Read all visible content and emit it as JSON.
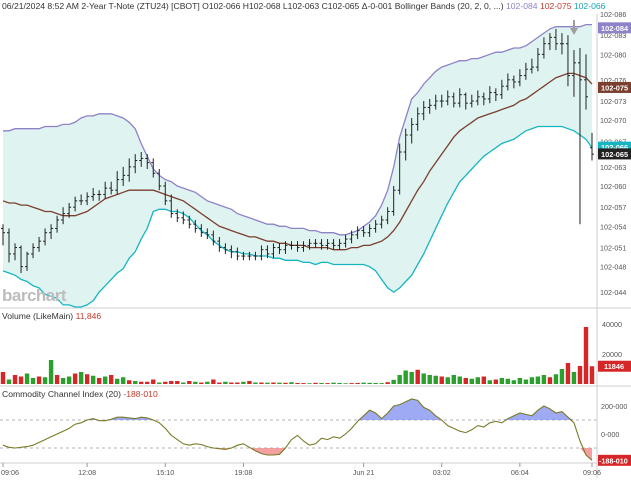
{
  "header": {
    "main": "06/21/2024 8:52 AM 2-Year T-Note (ZTU24) [CBOT] O102-066 H102-068 L102-063 C102-065 Δ-0-001 Bollinger Bands (20, 2, 0, ...)",
    "upper_val": "102-084",
    "mid_val": "102-075",
    "lower_val": "102-066"
  },
  "volume_panel": {
    "title": "Volume (LikeMain)",
    "value": "11,846"
  },
  "cci_panel": {
    "title": "Commodity Channel Index (20)",
    "value": "-188-010"
  },
  "logo": "barchart",
  "colors": {
    "upper_band": "#8e82c8",
    "middle_band": "#7b3f2e",
    "lower_band": "#17b5c2",
    "band_fill": "#dff3f1",
    "price_bar": "#222222",
    "vol_up": "#2ca02c",
    "vol_down": "#d62728",
    "cci_line": "#7a7a28",
    "cci_pos_fill": "#7f8df0",
    "cci_neg_fill": "#f08080",
    "tag_purple": "#8e82c8",
    "tag_brown": "#7b3f2e",
    "tag_teal": "#17b5c2",
    "tag_black": "#222222",
    "tag_red": "#d62728"
  },
  "chart_data": [
    {
      "type": "ohlc",
      "title": "2-Year T-Note (ZTU24) [CBOT]",
      "y_ticks": [
        "102-086",
        "102-083",
        "102-080",
        "102-076",
        "102-073",
        "102-070",
        "102-067",
        "102-063",
        "102-060",
        "102-057",
        "102-054",
        "102-051",
        "102-048",
        "102-044"
      ],
      "y_tick_values": [
        102.269,
        102.259,
        102.25,
        102.238,
        102.228,
        102.219,
        102.209,
        102.197,
        102.188,
        102.178,
        102.169,
        102.159,
        102.15,
        102.138
      ],
      "ylim": [
        102.131,
        102.269
      ],
      "price_tags": [
        {
          "label": "102-084",
          "value": 102.2625,
          "color": "#8e82c8"
        },
        {
          "label": "102-075",
          "value": 102.2344,
          "color": "#7b3f2e"
        },
        {
          "label": "102-066",
          "value": 102.2063,
          "color": "#17b5c2"
        },
        {
          "label": "102-065",
          "value": 102.2031,
          "color": "#222222"
        }
      ],
      "x_tick_labels": [
        "09:06",
        "12:08",
        "15:10",
        "19:08",
        "Jun 21",
        "03:02",
        "06:04",
        "09:06"
      ],
      "x_tick_index": [
        0,
        14,
        27,
        40,
        60,
        73,
        86,
        98
      ],
      "close": [
        102.166,
        102.156,
        102.159,
        102.15,
        102.156,
        102.159,
        102.162,
        102.166,
        102.168,
        102.172,
        102.175,
        102.178,
        102.181,
        102.181,
        102.183,
        102.184,
        102.184,
        102.187,
        102.186,
        102.191,
        102.193,
        102.197,
        102.2,
        102.201,
        102.199,
        102.194,
        102.188,
        102.181,
        102.175,
        102.173,
        102.172,
        102.17,
        102.168,
        102.166,
        102.165,
        102.162,
        102.159,
        102.158,
        102.157,
        102.155,
        102.155,
        102.155,
        102.155,
        102.158,
        102.156,
        102.159,
        102.158,
        102.16,
        102.16,
        102.159,
        102.16,
        102.161,
        102.161,
        102.16,
        102.161,
        102.16,
        102.161,
        102.163,
        102.165,
        102.167,
        102.166,
        102.168,
        102.17,
        102.172,
        102.176,
        102.186,
        102.204,
        102.212,
        102.217,
        102.222,
        102.225,
        102.226,
        102.228,
        102.228,
        102.23,
        102.227,
        102.231,
        102.227,
        102.228,
        102.23,
        102.229,
        102.232,
        102.231,
        102.235,
        102.238,
        102.237,
        102.24,
        102.243,
        102.244,
        102.25,
        102.255,
        102.258,
        102.255,
        102.255,
        102.24,
        102.246,
        102.238,
        102.23,
        102.203
      ],
      "open": [
        102.168,
        102.166,
        102.156,
        102.159,
        102.15,
        102.156,
        102.159,
        102.162,
        102.166,
        102.168,
        102.172,
        102.175,
        102.178,
        102.181,
        102.181,
        102.183,
        102.184,
        102.184,
        102.187,
        102.186,
        102.191,
        102.193,
        102.197,
        102.2,
        102.201,
        102.199,
        102.194,
        102.188,
        102.181,
        102.175,
        102.173,
        102.172,
        102.17,
        102.168,
        102.166,
        102.165,
        102.162,
        102.159,
        102.158,
        102.157,
        102.155,
        102.155,
        102.155,
        102.155,
        102.158,
        102.156,
        102.159,
        102.158,
        102.16,
        102.16,
        102.159,
        102.16,
        102.161,
        102.161,
        102.16,
        102.161,
        102.16,
        102.161,
        102.163,
        102.165,
        102.167,
        102.166,
        102.168,
        102.17,
        102.172,
        102.176,
        102.186,
        102.204,
        102.212,
        102.217,
        102.222,
        102.225,
        102.226,
        102.228,
        102.228,
        102.23,
        102.227,
        102.231,
        102.227,
        102.228,
        102.23,
        102.229,
        102.232,
        102.231,
        102.235,
        102.238,
        102.237,
        102.24,
        102.243,
        102.244,
        102.25,
        102.255,
        102.258,
        102.255,
        102.255,
        102.24,
        102.246,
        102.238,
        102.206
      ],
      "high": [
        102.17,
        102.168,
        102.161,
        102.16,
        102.157,
        102.161,
        102.164,
        102.168,
        102.17,
        102.174,
        102.178,
        102.18,
        102.183,
        102.184,
        102.185,
        102.187,
        102.186,
        102.19,
        102.19,
        102.195,
        102.197,
        102.201,
        102.203,
        102.204,
        102.203,
        102.201,
        102.196,
        102.19,
        102.184,
        102.177,
        102.176,
        102.174,
        102.172,
        102.17,
        102.168,
        102.167,
        102.164,
        102.161,
        102.16,
        102.159,
        102.157,
        102.157,
        102.157,
        102.16,
        102.16,
        102.161,
        102.161,
        102.162,
        102.162,
        102.162,
        102.162,
        102.163,
        102.163,
        102.163,
        102.163,
        102.163,
        102.163,
        102.165,
        102.167,
        102.169,
        102.169,
        102.17,
        102.172,
        102.174,
        102.178,
        102.188,
        102.208,
        102.215,
        102.22,
        102.225,
        102.228,
        102.229,
        102.231,
        102.231,
        102.233,
        102.232,
        102.234,
        102.232,
        102.231,
        102.233,
        102.232,
        102.235,
        102.234,
        102.238,
        102.241,
        102.24,
        102.243,
        102.246,
        102.248,
        102.253,
        102.258,
        102.26,
        102.262,
        102.26,
        102.259,
        102.252,
        102.253,
        102.25,
        102.213
      ],
      "low": [
        102.16,
        102.152,
        102.153,
        102.147,
        102.148,
        102.154,
        102.157,
        102.16,
        102.163,
        102.166,
        102.17,
        102.173,
        102.176,
        102.179,
        102.179,
        102.181,
        102.181,
        102.182,
        102.184,
        102.184,
        102.188,
        102.19,
        102.194,
        102.197,
        102.196,
        102.192,
        102.186,
        102.179,
        102.173,
        102.171,
        102.17,
        102.168,
        102.166,
        102.164,
        102.163,
        102.16,
        102.157,
        102.156,
        102.154,
        102.153,
        102.153,
        102.153,
        102.153,
        102.153,
        102.154,
        102.154,
        102.156,
        102.156,
        102.158,
        102.157,
        102.157,
        102.158,
        102.159,
        102.158,
        102.158,
        102.158,
        102.158,
        102.159,
        102.161,
        102.163,
        102.164,
        102.164,
        102.166,
        102.168,
        102.17,
        102.174,
        102.184,
        102.2,
        102.208,
        102.214,
        102.219,
        102.222,
        102.224,
        102.225,
        102.226,
        102.225,
        102.225,
        102.224,
        102.225,
        102.226,
        102.226,
        102.227,
        102.228,
        102.229,
        102.233,
        102.234,
        102.235,
        102.238,
        102.241,
        102.242,
        102.248,
        102.252,
        102.252,
        102.25,
        102.235,
        102.23,
        102.17,
        102.224,
        102.2
      ],
      "bb_upper": [
        102.214,
        102.214,
        102.215,
        102.215,
        102.215,
        102.215,
        102.215,
        102.216,
        102.216,
        102.216,
        102.217,
        102.217,
        102.218,
        102.22,
        102.221,
        102.221,
        102.222,
        102.222,
        102.222,
        102.221,
        102.22,
        102.218,
        102.215,
        102.208,
        102.202,
        102.196,
        102.193,
        102.191,
        102.19,
        102.188,
        102.187,
        102.186,
        102.185,
        102.183,
        102.181,
        102.18,
        102.179,
        102.178,
        102.177,
        102.175,
        102.174,
        102.173,
        102.172,
        102.171,
        102.17,
        102.17,
        102.169,
        102.169,
        102.168,
        102.168,
        102.168,
        102.167,
        102.167,
        102.166,
        102.166,
        102.166,
        102.165,
        102.165,
        102.166,
        102.167,
        102.169,
        102.171,
        102.174,
        102.179,
        102.186,
        102.197,
        102.211,
        102.22,
        102.229,
        102.232,
        102.236,
        102.239,
        102.242,
        102.244,
        102.245,
        102.246,
        102.247,
        102.247,
        102.248,
        102.248,
        102.249,
        102.25,
        102.251,
        102.251,
        102.252,
        102.253,
        102.253,
        102.254,
        102.256,
        102.258,
        102.26,
        102.262,
        102.263,
        102.263,
        102.263,
        102.263,
        102.263,
        102.264,
        102.264
      ],
      "bb_mid": [
        102.181,
        102.18,
        102.18,
        102.179,
        102.179,
        102.178,
        102.177,
        102.176,
        102.176,
        102.175,
        102.174,
        102.174,
        102.174,
        102.175,
        102.176,
        102.178,
        102.18,
        102.182,
        102.183,
        102.184,
        102.185,
        102.186,
        102.186,
        102.186,
        102.186,
        102.186,
        102.185,
        102.184,
        102.183,
        102.182,
        102.181,
        102.179,
        102.177,
        102.175,
        102.173,
        102.171,
        102.169,
        102.168,
        102.167,
        102.166,
        102.165,
        102.164,
        102.164,
        102.163,
        102.162,
        102.162,
        102.161,
        102.161,
        102.16,
        102.16,
        102.16,
        102.159,
        102.159,
        102.159,
        102.159,
        102.158,
        102.158,
        102.158,
        102.159,
        102.159,
        102.16,
        102.16,
        102.161,
        102.162,
        102.164,
        102.167,
        102.171,
        102.176,
        102.181,
        102.186,
        102.19,
        102.195,
        102.199,
        102.203,
        102.207,
        102.211,
        102.214,
        102.216,
        102.218,
        102.22,
        102.221,
        102.222,
        102.223,
        102.224,
        102.225,
        102.226,
        102.228,
        102.229,
        102.231,
        102.233,
        102.235,
        102.237,
        102.239,
        102.24,
        102.241,
        102.241,
        102.24,
        102.239,
        102.236
      ],
      "bb_lower": [
        102.148,
        102.147,
        102.146,
        102.144,
        102.143,
        102.141,
        102.14,
        102.137,
        102.136,
        102.135,
        102.132,
        102.132,
        102.131,
        102.131,
        102.132,
        102.134,
        102.138,
        102.141,
        102.144,
        102.147,
        102.149,
        102.154,
        102.157,
        102.163,
        102.168,
        102.176,
        102.177,
        102.177,
        102.176,
        102.176,
        102.175,
        102.173,
        102.17,
        102.167,
        102.165,
        102.162,
        102.16,
        102.158,
        102.157,
        102.157,
        102.156,
        102.156,
        102.155,
        102.155,
        102.155,
        102.154,
        102.154,
        102.153,
        102.153,
        102.153,
        102.152,
        102.152,
        102.151,
        102.152,
        102.152,
        102.151,
        102.151,
        102.151,
        102.151,
        102.151,
        102.151,
        102.15,
        102.148,
        102.144,
        102.14,
        102.138,
        102.14,
        102.143,
        102.146,
        102.151,
        102.156,
        102.162,
        102.168,
        102.174,
        102.18,
        102.185,
        102.19,
        102.193,
        102.196,
        102.199,
        102.202,
        102.204,
        102.206,
        102.208,
        102.209,
        102.21,
        102.212,
        102.214,
        102.215,
        102.216,
        102.216,
        102.216,
        102.216,
        102.216,
        102.215,
        102.214,
        102.212,
        102.21,
        102.206
      ]
    },
    {
      "type": "bar",
      "title": "Volume (LikeMain)",
      "y_ticks": [
        "40000",
        "20000"
      ],
      "y_tick_values": [
        40000,
        20000
      ],
      "ylim": [
        0,
        44000
      ],
      "last_label": "11846",
      "values": [
        8000,
        3000,
        6000,
        5000,
        7000,
        4000,
        5000,
        4500,
        16000,
        6000,
        4000,
        5000,
        7000,
        8000,
        6500,
        5500,
        4000,
        5000,
        6000,
        3500,
        4500,
        2500,
        2000,
        1500,
        1500,
        3000,
        1000,
        1500,
        2000,
        2000,
        1000,
        2000,
        1500,
        1000,
        1500,
        3000,
        1000,
        1500,
        1000,
        1000,
        1500,
        2000,
        1000,
        1000,
        900,
        1000,
        900,
        800,
        1200,
        700,
        600,
        500,
        800,
        700,
        600,
        900,
        700,
        500,
        600,
        700,
        900,
        800,
        700,
        600,
        1200,
        2800,
        6000,
        9000,
        8000,
        9500,
        7000,
        6000,
        5500,
        5000,
        4500,
        6000,
        5000,
        4000,
        3500,
        4500,
        5000,
        2500,
        3000,
        4000,
        3500,
        2500,
        4000,
        3000,
        4500,
        5000,
        6000,
        4500,
        6500,
        10000,
        14000,
        8000,
        12000,
        38000,
        11846
      ],
      "up": [
        false,
        true,
        false,
        false,
        true,
        true,
        false,
        true,
        true,
        false,
        true,
        true,
        false,
        true,
        false,
        true,
        false,
        true,
        false,
        true,
        true,
        false,
        true,
        false,
        false,
        false,
        true,
        false,
        false,
        false,
        true,
        false,
        true,
        false,
        true,
        false,
        false,
        true,
        false,
        false,
        true,
        false,
        true,
        false,
        true,
        false,
        true,
        false,
        true,
        false,
        false,
        true,
        false,
        true,
        false,
        true,
        true,
        true,
        false,
        false,
        true,
        true,
        true,
        true,
        false,
        true,
        true,
        true,
        true,
        false,
        true,
        true,
        true,
        false,
        true,
        true,
        true,
        false,
        true,
        true,
        false,
        true,
        false,
        true,
        true,
        true,
        true,
        true,
        true,
        true,
        true,
        false,
        true,
        true,
        false,
        true,
        false,
        false,
        false
      ]
    },
    {
      "type": "line",
      "title": "Commodity Channel Index (20)",
      "y_ticks": [
        "200-000",
        "0-000"
      ],
      "y_tick_values": [
        200,
        0
      ],
      "ylim": [
        -200,
        300
      ],
      "guide_lines": [
        100,
        -100
      ],
      "last_label": "-188-010",
      "values": [
        -80,
        -95,
        -100,
        -95,
        -90,
        -80,
        -60,
        -40,
        -20,
        0,
        20,
        40,
        70,
        80,
        100,
        110,
        95,
        95,
        105,
        120,
        120,
        115,
        110,
        120,
        115,
        100,
        80,
        40,
        -10,
        -40,
        -70,
        -80,
        -70,
        -75,
        -90,
        -100,
        -105,
        -110,
        -100,
        -80,
        -70,
        -95,
        -120,
        -140,
        -150,
        -150,
        -145,
        -100,
        -40,
        -10,
        -50,
        -80,
        -70,
        -30,
        -40,
        -20,
        -30,
        0,
        40,
        90,
        130,
        170,
        150,
        110,
        150,
        200,
        210,
        230,
        250,
        240,
        190,
        170,
        130,
        100,
        60,
        40,
        20,
        10,
        30,
        60,
        50,
        80,
        90,
        80,
        110,
        130,
        150,
        140,
        130,
        170,
        200,
        180,
        150,
        160,
        120,
        80,
        -50,
        -150,
        -188
      ]
    }
  ]
}
